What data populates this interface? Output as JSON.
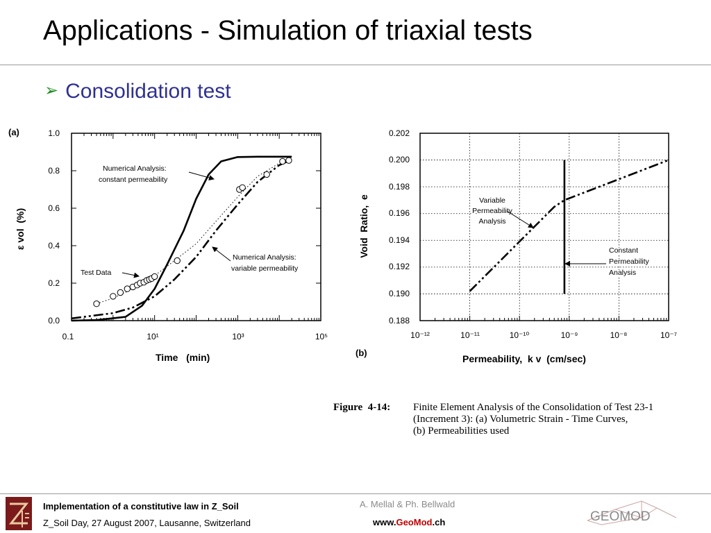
{
  "slide": {
    "title": "Applications - Simulation of triaxial tests",
    "bullet": "Consolidation test"
  },
  "figure": {
    "caption_label": "Figure  4-14:",
    "caption_lines": [
      "Finite Element Analysis of the Consolidation of Test 23-1",
      "(Increment 3): (a) Volumetric Strain - Time Curves,",
      "(b) Permeabilities used"
    ]
  },
  "chart_data": [
    {
      "type": "line",
      "panel_label": "(a)",
      "xlabel": "Time   (min)",
      "ylabel": "ε vol  (%)",
      "x_scale": "log",
      "xlim": [
        0.1,
        100000
      ],
      "ylim": [
        0.0,
        1.0
      ],
      "x_tick_labels": [
        "0.1",
        "10¹",
        "10³",
        "10⁵"
      ],
      "y_tick_labels": [
        "0.0",
        "0.2",
        "0.4",
        "0.6",
        "0.8",
        "1.0"
      ],
      "annotations": [
        "Numerical Analysis:",
        "constant permeability",
        "Numerical Analysis:",
        "variable permeability",
        "Test Data"
      ],
      "series": [
        {
          "style": "solid",
          "points": [
            [
              0.1,
              0.0
            ],
            [
              0.4,
              0.003
            ],
            [
              2,
              0.02
            ],
            [
              5,
              0.08
            ],
            [
              10,
              0.17
            ],
            [
              20,
              0.3
            ],
            [
              50,
              0.48
            ],
            [
              100,
              0.65
            ],
            [
              200,
              0.78
            ],
            [
              400,
              0.85
            ],
            [
              1000,
              0.873
            ],
            [
              3000,
              0.875
            ],
            [
              20000,
              0.875
            ]
          ]
        },
        {
          "style": "dash-dot",
          "points": [
            [
              0.1,
              0.012
            ],
            [
              1,
              0.04
            ],
            [
              3,
              0.07
            ],
            [
              10,
              0.13
            ],
            [
              30,
              0.22
            ],
            [
              100,
              0.34
            ],
            [
              300,
              0.48
            ],
            [
              1000,
              0.62
            ],
            [
              3000,
              0.74
            ],
            [
              10000,
              0.83
            ],
            [
              20000,
              0.86
            ]
          ]
        },
        {
          "style": "dotted",
          "points": [
            [
              0.4,
              0.09
            ],
            [
              1,
              0.12
            ],
            [
              3,
              0.17
            ],
            [
              10,
              0.24
            ],
            [
              30,
              0.32
            ],
            [
              100,
              0.41
            ],
            [
              300,
              0.53
            ],
            [
              1000,
              0.66
            ],
            [
              3000,
              0.77
            ],
            [
              10000,
              0.84
            ],
            [
              20000,
              0.86
            ]
          ]
        },
        {
          "style": "markers",
          "points": [
            [
              0.4,
              0.09
            ],
            [
              1.0,
              0.13
            ],
            [
              1.5,
              0.15
            ],
            [
              2.2,
              0.17
            ],
            [
              3.0,
              0.18
            ],
            [
              3.8,
              0.19
            ],
            [
              4.5,
              0.2
            ],
            [
              5.5,
              0.205
            ],
            [
              6.5,
              0.215
            ],
            [
              7.5,
              0.22
            ],
            [
              8.5,
              0.225
            ],
            [
              10,
              0.235
            ],
            [
              35,
              0.32
            ],
            [
              1100,
              0.7
            ],
            [
              1300,
              0.71
            ],
            [
              5000,
              0.78
            ],
            [
              12000,
              0.85
            ],
            [
              17000,
              0.855
            ]
          ]
        }
      ]
    },
    {
      "type": "line",
      "panel_label": "(b)",
      "xlabel": "Permeability,  k v  (cm/sec)",
      "ylabel": "Void  Ratio,  e",
      "x_scale": "log",
      "xlim": [
        1e-12,
        1e-07
      ],
      "ylim": [
        0.188,
        0.202
      ],
      "x_tick_labels": [
        "10⁻¹²",
        "10⁻¹¹",
        "10⁻¹⁰",
        "10⁻⁹",
        "10⁻⁸",
        "10⁻⁷"
      ],
      "y_tick_labels": [
        "0.188",
        "0.190",
        "0.192",
        "0.194",
        "0.196",
        "0.198",
        "0.200",
        "0.202"
      ],
      "annotations": [
        "Variable",
        "Permeability",
        "Analysis",
        "Constant",
        "Permeability",
        "Analysis"
      ],
      "series": [
        {
          "style": "dash-dot",
          "points": [
            [
              1e-11,
              0.1902
            ],
            [
              5e-10,
              0.1965
            ],
            [
              8e-10,
              0.197
            ],
            [
              1e-07,
              0.2
            ]
          ]
        },
        {
          "style": "solid",
          "points": [
            [
              8e-10,
              0.19
            ],
            [
              8e-10,
              0.2
            ]
          ]
        }
      ]
    }
  ],
  "footer": {
    "title": "Implementation of a constitutive law in Z_Soil",
    "event": "Z_Soil Day, 27 August 2007, Lausanne, Switzerland",
    "authors": "A. Mellal & Ph. Bellwald",
    "url_prefix": "www.",
    "url_geo": "Geo",
    "url_mod": "Mod",
    "url_suffix": ".ch",
    "logo_text": "GEOMOD"
  },
  "colors": {
    "bullet_text": "#2e3192",
    "bullet_arrow": "#1e8c22",
    "url_red": "#c00000",
    "logo_red": "#7b1a1a"
  }
}
